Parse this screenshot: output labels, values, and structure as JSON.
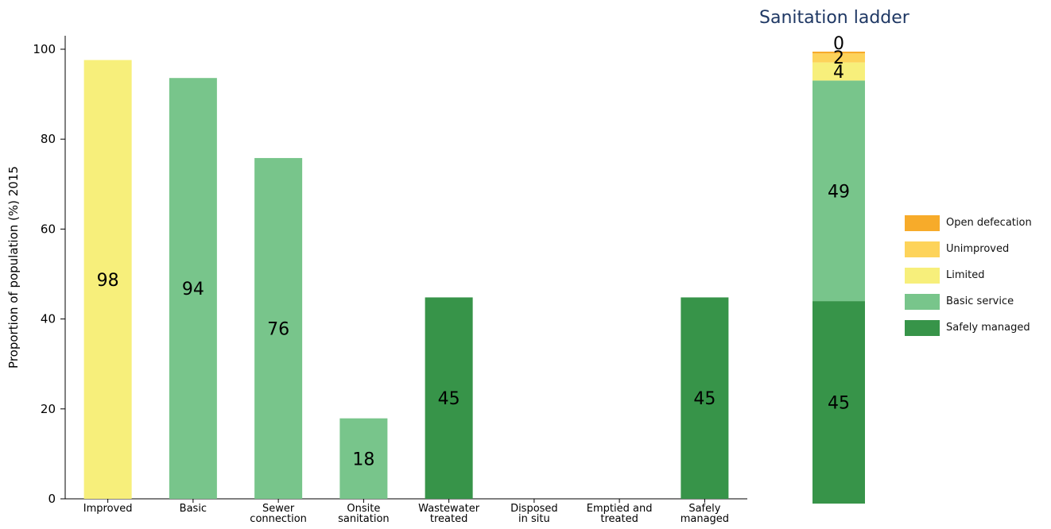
{
  "chart_data": [
    {
      "type": "bar",
      "ylabel": "Proportion of population (%) 2015",
      "ylim": [
        0,
        103
      ],
      "yticks": [
        0,
        20,
        40,
        60,
        80,
        100
      ],
      "categories": [
        [
          "Improved"
        ],
        [
          "Basic"
        ],
        [
          "Sewer",
          "connection"
        ],
        [
          "Onsite",
          "sanitation"
        ],
        [
          "Wastewater",
          "treated"
        ],
        [
          "Disposed",
          "in situ"
        ],
        [
          "Emptied and",
          "treated"
        ],
        [
          "Safely",
          "managed"
        ]
      ],
      "values": [
        97.6,
        93.6,
        75.8,
        17.9,
        44.8,
        null,
        null,
        44.8
      ],
      "data_labels": [
        "98",
        "94",
        "76",
        "18",
        "45",
        "",
        "",
        "45"
      ],
      "bar_colors": [
        "#f7ef7b",
        "#78c58b",
        "#78c58b",
        "#78c58b",
        "#379449",
        "",
        "",
        "#379449"
      ]
    },
    {
      "type": "bar",
      "stacked": true,
      "title": "Sanitation ladder",
      "legend_position": "right",
      "series": [
        {
          "name": "Safely managed",
          "value": 44.8,
          "label": "45",
          "color": "#379449"
        },
        {
          "name": "Basic service",
          "value": 48.8,
          "label": "49",
          "color": "#78c58b"
        },
        {
          "name": "Limited",
          "value": 4.0,
          "label": "4",
          "color": "#f7ef7b"
        },
        {
          "name": "Unimproved",
          "value": 2.0,
          "label": "2",
          "color": "#fdd35a"
        },
        {
          "name": "Open defecation",
          "value": 0.4,
          "label": "0",
          "color": "#f7ab2a"
        }
      ]
    }
  ]
}
